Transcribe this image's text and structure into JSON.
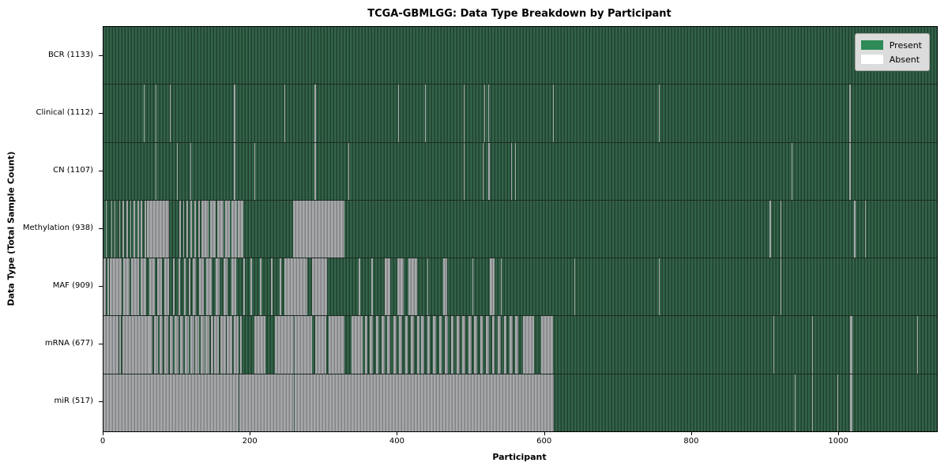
{
  "chart_data": {
    "type": "heatmap",
    "title": "TCGA-GBMLGG: Data Type Breakdown by Participant",
    "xlabel": "Participant",
    "ylabel": "Data Type (Total Sample Count)",
    "x_max": 1133,
    "x_ticks": [
      0,
      200,
      400,
      600,
      800,
      1000
    ],
    "grid": false,
    "legend_position": "upper right",
    "legend": [
      {
        "label": "Present",
        "color": "#2e8b57"
      },
      {
        "label": "Absent",
        "color": "#ffffff"
      }
    ],
    "colors": {
      "present_legend": "#2e8b57",
      "absent_legend": "#ffffff",
      "present_bar_stripes": [
        "#33624a",
        "#2a523b",
        "#20412e"
      ],
      "absent_bar_stripes": [
        "#a6a8aa",
        "#95979a",
        "#7f8184"
      ],
      "legend_background": "#dcdcdc",
      "axis_line": "#000000"
    },
    "rows": [
      {
        "label": "BCR (1133)",
        "total": 1133,
        "absent_runs": []
      },
      {
        "label": "Clinical (1112)",
        "total": 1112,
        "absent_runs": [
          [
            55,
            56
          ],
          [
            71,
            72
          ],
          [
            90,
            91
          ],
          [
            177,
            179
          ],
          [
            246,
            247
          ],
          [
            287,
            289
          ],
          [
            401,
            402
          ],
          [
            437,
            438
          ],
          [
            490,
            491
          ],
          [
            518,
            519
          ],
          [
            523,
            524
          ],
          [
            611,
            612
          ],
          [
            755,
            756
          ],
          [
            1014,
            1016
          ]
        ]
      },
      {
        "label": "CN (1107)",
        "total": 1107,
        "absent_runs": [
          [
            71,
            72
          ],
          [
            100,
            101
          ],
          [
            118,
            119
          ],
          [
            177,
            179
          ],
          [
            205,
            206
          ],
          [
            287,
            289
          ],
          [
            333,
            334
          ],
          [
            490,
            491
          ],
          [
            516,
            517
          ],
          [
            523,
            525
          ],
          [
            554,
            555
          ],
          [
            560,
            561
          ],
          [
            935,
            937
          ],
          [
            1014,
            1016
          ]
        ]
      },
      {
        "label": "Methylation (938)",
        "total": 938,
        "absent_runs": [
          [
            3,
            4
          ],
          [
            7,
            8
          ],
          [
            11,
            12
          ],
          [
            15,
            16
          ],
          [
            21,
            23
          ],
          [
            26,
            28
          ],
          [
            31,
            33
          ],
          [
            36,
            38
          ],
          [
            41,
            43
          ],
          [
            46,
            48
          ],
          [
            51,
            53
          ],
          [
            56,
            58
          ],
          [
            59,
            89
          ],
          [
            103,
            105
          ],
          [
            108,
            110
          ],
          [
            113,
            115
          ],
          [
            118,
            120
          ],
          [
            124,
            126
          ],
          [
            129,
            131
          ],
          [
            133,
            143
          ],
          [
            145,
            153
          ],
          [
            155,
            163
          ],
          [
            165,
            172
          ],
          [
            174,
            181
          ],
          [
            183,
            190
          ],
          [
            210,
            211
          ],
          [
            258,
            328
          ],
          [
            905,
            907
          ],
          [
            920,
            921
          ],
          [
            1020,
            1022
          ],
          [
            1035,
            1036
          ]
        ]
      },
      {
        "label": "MAF (909)",
        "total": 909,
        "absent_runs": [
          [
            0,
            3
          ],
          [
            5,
            8
          ],
          [
            9,
            25
          ],
          [
            27,
            35
          ],
          [
            38,
            48
          ],
          [
            50,
            58
          ],
          [
            62,
            70
          ],
          [
            73,
            80
          ],
          [
            83,
            89
          ],
          [
            95,
            97
          ],
          [
            102,
            104
          ],
          [
            110,
            112
          ],
          [
            116,
            118
          ],
          [
            121,
            126
          ],
          [
            130,
            136
          ],
          [
            140,
            147
          ],
          [
            152,
            158
          ],
          [
            163,
            169
          ],
          [
            174,
            180
          ],
          [
            190,
            192
          ],
          [
            200,
            202
          ],
          [
            213,
            215
          ],
          [
            228,
            230
          ],
          [
            240,
            242
          ],
          [
            246,
            277
          ],
          [
            284,
            304
          ],
          [
            347,
            349
          ],
          [
            364,
            366
          ],
          [
            382,
            390
          ],
          [
            400,
            408
          ],
          [
            415,
            426
          ],
          [
            440,
            441
          ],
          [
            462,
            467
          ],
          [
            502,
            503
          ],
          [
            525,
            532
          ],
          [
            540,
            541
          ],
          [
            640,
            641
          ],
          [
            755,
            756
          ],
          [
            920,
            921
          ]
        ]
      },
      {
        "label": "mRNA (677)",
        "total": 677,
        "absent_runs": [
          [
            0,
            20
          ],
          [
            21,
            24
          ],
          [
            26,
            62
          ],
          [
            62,
            67
          ],
          [
            69,
            74
          ],
          [
            76,
            81
          ],
          [
            83,
            88
          ],
          [
            90,
            95
          ],
          [
            97,
            102
          ],
          [
            104,
            109
          ],
          [
            111,
            116
          ],
          [
            118,
            123
          ],
          [
            125,
            130
          ],
          [
            132,
            137
          ],
          [
            139,
            144
          ],
          [
            146,
            149
          ],
          [
            150,
            157
          ],
          [
            159,
            166
          ],
          [
            168,
            175
          ],
          [
            177,
            184
          ],
          [
            186,
            188
          ],
          [
            205,
            220
          ],
          [
            233,
            259
          ],
          [
            260,
            283
          ],
          [
            288,
            303
          ],
          [
            306,
            328
          ],
          [
            337,
            352
          ],
          [
            355,
            359
          ],
          [
            362,
            366
          ],
          [
            370,
            374
          ],
          [
            378,
            382
          ],
          [
            386,
            390
          ],
          [
            394,
            398
          ],
          [
            402,
            406
          ],
          [
            410,
            414
          ],
          [
            418,
            422
          ],
          [
            426,
            430
          ],
          [
            432,
            436
          ],
          [
            440,
            444
          ],
          [
            448,
            452
          ],
          [
            456,
            460
          ],
          [
            464,
            468
          ],
          [
            472,
            476
          ],
          [
            480,
            484
          ],
          [
            488,
            492
          ],
          [
            496,
            500
          ],
          [
            504,
            508
          ],
          [
            512,
            516
          ],
          [
            520,
            524
          ],
          [
            528,
            532
          ],
          [
            536,
            540
          ],
          [
            544,
            548
          ],
          [
            552,
            556
          ],
          [
            560,
            564
          ],
          [
            570,
            585
          ],
          [
            595,
            611
          ],
          [
            911,
            912
          ],
          [
            963,
            964
          ],
          [
            1015,
            1018
          ],
          [
            1106,
            1107
          ]
        ]
      },
      {
        "label": "miR (517)",
        "total": 517,
        "absent_runs": [
          [
            0,
            184
          ],
          [
            185,
            259
          ],
          [
            260,
            612
          ],
          [
            940,
            941
          ],
          [
            963,
            964
          ],
          [
            998,
            999
          ],
          [
            1015,
            1018
          ]
        ]
      }
    ]
  }
}
